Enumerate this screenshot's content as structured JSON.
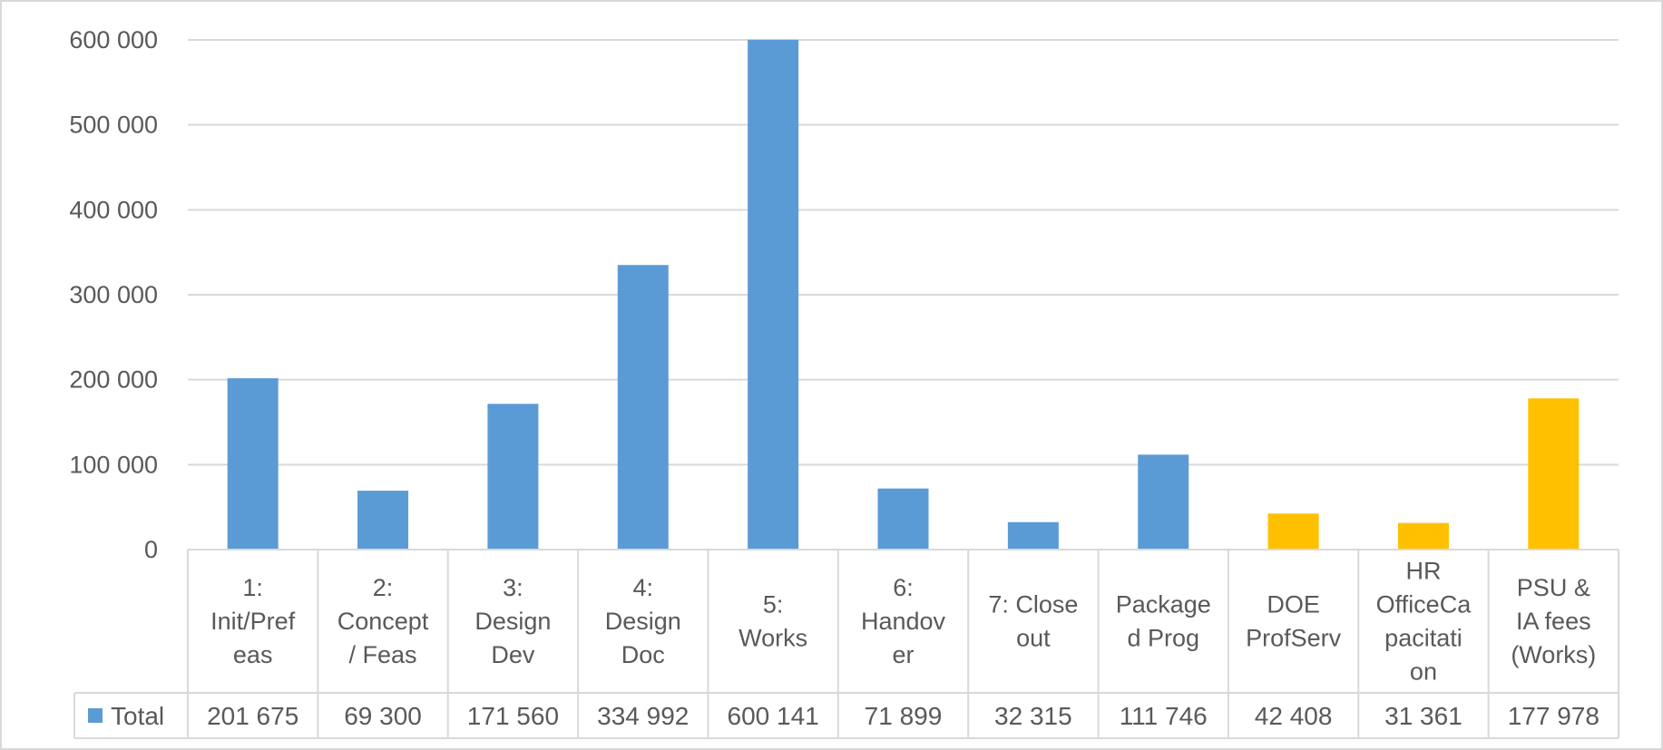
{
  "chart_data": {
    "type": "bar",
    "title": "",
    "xlabel": "",
    "ylabel": "",
    "ylim": [
      0,
      600000
    ],
    "yticks": [
      0,
      100000,
      200000,
      300000,
      400000,
      500000,
      600000
    ],
    "ytick_labels": [
      "0",
      "100 000",
      "200 000",
      "300 000",
      "400 000",
      "500 000",
      "600 000"
    ],
    "grid": true,
    "data_table": true,
    "categories": [
      [
        "1:",
        "Init/Pref",
        "eas"
      ],
      [
        "2:",
        "Concept",
        "/ Feas"
      ],
      [
        "3:",
        "Design",
        "Dev"
      ],
      [
        "4:",
        "Design",
        "Doc"
      ],
      [
        "5:",
        "Works"
      ],
      [
        "6:",
        "Handov",
        "er"
      ],
      [
        "7: Close",
        "out"
      ],
      [
        "Package",
        "d Prog"
      ],
      [
        "DOE",
        "ProfServ"
      ],
      [
        "HR",
        "OfficeCa",
        "pacitati",
        "on"
      ],
      [
        "PSU &",
        "IA fees",
        "(Works)"
      ]
    ],
    "series": [
      {
        "name": "Total",
        "color": "#5b9bd5",
        "values": [
          201675,
          69300,
          171560,
          334992,
          600141,
          71899,
          32315,
          111746,
          42408,
          31361,
          177978
        ],
        "value_labels": [
          "201 675",
          "69 300",
          "171 560",
          "334 992",
          "600 141",
          "71 899",
          "32 315",
          "111 746",
          "42 408",
          "31 361",
          "177 978"
        ],
        "point_colors": [
          "#5b9bd5",
          "#5b9bd5",
          "#5b9bd5",
          "#5b9bd5",
          "#5b9bd5",
          "#5b9bd5",
          "#5b9bd5",
          "#5b9bd5",
          "#ffc000",
          "#ffc000",
          "#ffc000"
        ]
      }
    ],
    "colors": {
      "gridline": "#d9d9d9",
      "table_border": "#d9d9d9",
      "text": "#595959"
    }
  }
}
